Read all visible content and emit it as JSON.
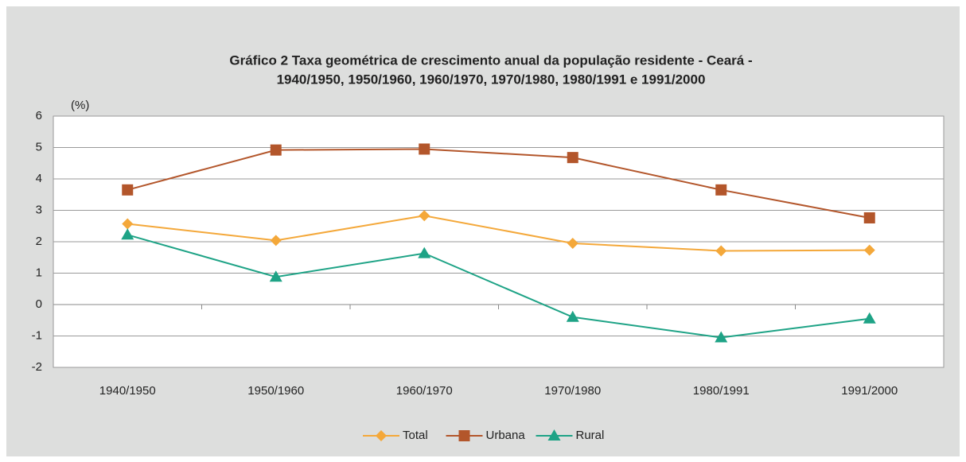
{
  "chart_data": {
    "type": "line",
    "title": [
      "Gráfico 2  Taxa geométrica de crescimento anual da população residente - Ceará -",
      "1940/1950, 1950/1960, 1960/1970, 1970/1980, 1980/1991 e 1991/2000"
    ],
    "y_label": "(%)",
    "categories": [
      "1940/1950",
      "1950/1960",
      "1960/1970",
      "1970/1980",
      "1980/1991",
      "1991/2000"
    ],
    "series": [
      {
        "name": "Total",
        "color": "#f4a83a",
        "marker": "diamond",
        "values": [
          2.57,
          2.04,
          2.83,
          1.95,
          1.71,
          1.73
        ]
      },
      {
        "name": "Urbana",
        "color": "#b3562b",
        "marker": "square",
        "values": [
          3.65,
          4.92,
          4.95,
          4.68,
          3.65,
          2.76
        ]
      },
      {
        "name": "Rural",
        "color": "#1ea386",
        "marker": "triangle",
        "values": [
          2.22,
          0.88,
          1.63,
          -0.4,
          -1.05,
          -0.45
        ]
      }
    ],
    "ylim": [
      -2,
      6
    ],
    "yticks": [
      -2,
      -1,
      0,
      1,
      2,
      3,
      4,
      5,
      6
    ],
    "grid": true,
    "legend": "bottom"
  }
}
